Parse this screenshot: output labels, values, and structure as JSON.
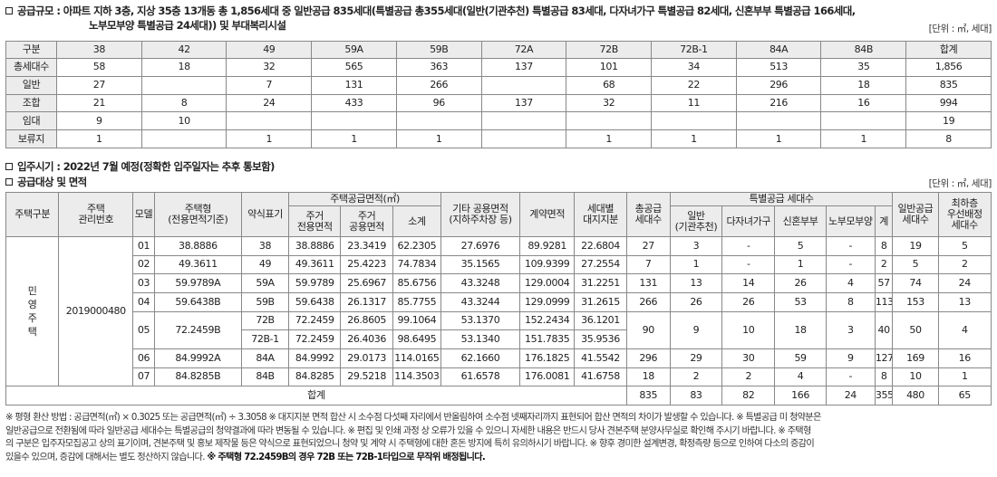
{
  "section1": {
    "line1": "공급규모 : 아파트 지하 3층, 지상 35층 13개동 총 1,856세대 중 일반공급 835세대(특별공급 총355세대(일반(기관추천) 특별공급 83세대, 다자녀가구 특별공급 82세대, 신혼부부 특별공급 166세대,",
    "line2": "노부모부양 특별공급 24세대)) 및 부대복리시설",
    "unit": "[단위 : ㎡, 세대]",
    "headers": [
      "구분",
      "38",
      "42",
      "49",
      "59A",
      "59B",
      "72A",
      "72B",
      "72B-1",
      "84A",
      "84B",
      "합계"
    ],
    "rows": [
      [
        "총세대수",
        "58",
        "18",
        "32",
        "565",
        "363",
        "137",
        "101",
        "34",
        "513",
        "35",
        "1,856"
      ],
      [
        "일반",
        "27",
        "",
        "7",
        "131",
        "266",
        "",
        "68",
        "22",
        "296",
        "18",
        "835"
      ],
      [
        "조합",
        "21",
        "8",
        "24",
        "433",
        "96",
        "137",
        "32",
        "11",
        "216",
        "16",
        "994"
      ],
      [
        "임대",
        "9",
        "10",
        "",
        "",
        "",
        "",
        "",
        "",
        "",
        "",
        "19"
      ],
      [
        "보류지",
        "1",
        "",
        "1",
        "1",
        "1",
        "",
        "1",
        "1",
        "1",
        "1",
        "8"
      ]
    ]
  },
  "section2": {
    "occupancy": "입주시기 : 2022년 7월 예정(정확한 입주일자는 추후 통보함)",
    "title": "공급대상 및 면적",
    "unit": "[단위 : ㎡, 세대]",
    "h": {
      "type": "주택구분",
      "mgmt": "주택\n관리번호",
      "model": "모델",
      "housetype": "주택형\n(전용면적기준)",
      "abbr": "약식표기",
      "area_group": "주택공급면적(㎡)",
      "exclusive": "주거\n전용면적",
      "common": "주거\n공용면적",
      "subtotal": "소계",
      "other_common": "기타 공용면적\n(지하주차장 등)",
      "contract": "계약면적",
      "land": "세대별\n대지지분",
      "total_supply": "총공급\n세대수",
      "special_group": "특별공급 세대수",
      "sp_general": "일반\n(기관추천)",
      "sp_multi": "다자녀가구",
      "sp_newlywed": "신혼부부",
      "sp_elderly": "노부모부양",
      "sp_sum": "계",
      "general_supply": "일반공급\n세대수",
      "lowest_floor": "최하층\n우선배정\n세대수"
    },
    "type_value": "민\n영\n주\n택",
    "mgmt_value": "2019000480",
    "rows": [
      {
        "model": "01",
        "housetype": "38.8886",
        "abbr": "38",
        "excl": "38.8886",
        "comm": "23.3419",
        "sub": "62.2305",
        "other": "27.6976",
        "contract": "89.9281",
        "land": "22.6804",
        "total": "27",
        "sp1": "3",
        "sp2": "-",
        "sp3": "5",
        "sp4": "-",
        "sp5": "8",
        "gen": "19",
        "low": "5"
      },
      {
        "model": "02",
        "housetype": "49.3611",
        "abbr": "49",
        "excl": "49.3611",
        "comm": "25.4223",
        "sub": "74.7834",
        "other": "35.1565",
        "contract": "109.9399",
        "land": "27.2554",
        "total": "7",
        "sp1": "1",
        "sp2": "-",
        "sp3": "1",
        "sp4": "-",
        "sp5": "2",
        "gen": "5",
        "low": "2"
      },
      {
        "model": "03",
        "housetype": "59.9789A",
        "abbr": "59A",
        "excl": "59.9789",
        "comm": "25.6967",
        "sub": "85.6756",
        "other": "43.3248",
        "contract": "129.0004",
        "land": "31.2251",
        "total": "131",
        "sp1": "13",
        "sp2": "14",
        "sp3": "26",
        "sp4": "4",
        "sp5": "57",
        "gen": "74",
        "low": "24"
      },
      {
        "model": "04",
        "housetype": "59.6438B",
        "abbr": "59B",
        "excl": "59.6438",
        "comm": "26.1317",
        "sub": "85.7755",
        "other": "43.3244",
        "contract": "129.0999",
        "land": "31.2615",
        "total": "266",
        "sp1": "26",
        "sp2": "26",
        "sp3": "53",
        "sp4": "8",
        "sp5": "113",
        "gen": "153",
        "low": "13"
      },
      {
        "model": "05",
        "housetype": "72.2459B",
        "abbr": "72B",
        "excl": "72.2459",
        "comm": "26.8605",
        "sub": "99.1064",
        "other": "53.1370",
        "contract": "152.2434",
        "land": "36.1201",
        "total": "90",
        "sp1": "9",
        "sp2": "10",
        "sp3": "18",
        "sp4": "3",
        "sp5": "40",
        "gen": "50",
        "low": "4"
      },
      {
        "model": "",
        "housetype": "",
        "abbr": "72B-1",
        "excl": "72.2459",
        "comm": "26.4036",
        "sub": "98.6495",
        "other": "53.1340",
        "contract": "151.7835",
        "land": "35.9536",
        "total": "",
        "sp1": "",
        "sp2": "",
        "sp3": "",
        "sp4": "",
        "sp5": "",
        "gen": "",
        "low": ""
      },
      {
        "model": "06",
        "housetype": "84.9992A",
        "abbr": "84A",
        "excl": "84.9992",
        "comm": "29.0173",
        "sub": "114.0165",
        "other": "62.1660",
        "contract": "176.1825",
        "land": "41.5542",
        "total": "296",
        "sp1": "29",
        "sp2": "30",
        "sp3": "59",
        "sp4": "9",
        "sp5": "127",
        "gen": "169",
        "low": "16"
      },
      {
        "model": "07",
        "housetype": "84.8285B",
        "abbr": "84B",
        "excl": "84.8285",
        "comm": "29.5218",
        "sub": "114.3503",
        "other": "61.6578",
        "contract": "176.0081",
        "land": "41.6758",
        "total": "18",
        "sp1": "2",
        "sp2": "2",
        "sp3": "4",
        "sp4": "-",
        "sp5": "8",
        "gen": "10",
        "low": "1"
      }
    ],
    "total_row": {
      "label": "합계",
      "total": "835",
      "sp1": "83",
      "sp2": "82",
      "sp3": "166",
      "sp4": "24",
      "sp5": "355",
      "gen": "480",
      "low": "65"
    }
  },
  "notes": {
    "line1": "※ 평형 환산 방법 : 공급면적(㎡) × 0.3025 또는 공급면적(㎡) ÷ 3.3058  ※ 대지지분 면적 합산 시 소수점 다섯째 자리에서 반올림하여 소수점 넷째자리까지 표현되어 합산 면적의 차이가 발생할 수 있습니다.  ※ 특별공급 미 청약분은",
    "line2": "일반공급으로 전환됨에 따라 일반공급 세대수는 특별공급의 청약결과에 따라 변동될 수 있습니다.  ※ 편집 및 인쇄 과정 상 오류가 있을 수 있으니 자세한 내용은 반드시 당사 견본주택 분양사무실로 확인해 주시기 바랍니다.  ※ 주택형",
    "line3": "의 구분은 입주자모집공고 상의 표기이며, 견본주택 및 홍보 제작물 등은 약식으로 표현되었으니 청약 및 계약 시 주택형에 대한 혼돈 방지에 특히 유의하시기 바랍니다.  ※ 향후 경미한 설계변경, 확정측량 등으로 인하여 다소의 증감이",
    "line4a": "있을수 있으며, 증감에 대해서는 별도 정산하지 않습니다.  ",
    "line4b": "※ 주택형 72.2459B의 경우 72B 또는 72B-1타입으로 무작위 배정됩니다."
  }
}
